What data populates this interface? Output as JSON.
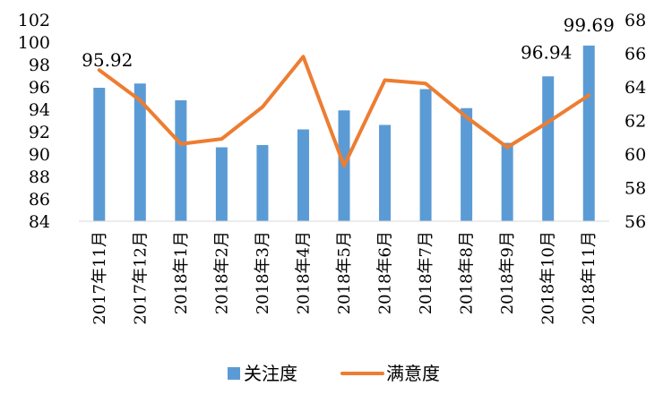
{
  "chart_data": {
    "type": "bar+line",
    "categories": [
      "2017年11月",
      "2017年12月",
      "2018年1月",
      "2018年2月",
      "2018年3月",
      "2018年4月",
      "2018年5月",
      "2018年6月",
      "2018年7月",
      "2018年8月",
      "2018年9月",
      "2018年10月",
      "2018年11月"
    ],
    "series": [
      {
        "name": "关注度",
        "type": "bar",
        "axis": "left",
        "color": "#5B9BD5",
        "values": [
          95.92,
          96.3,
          94.8,
          90.6,
          90.8,
          92.2,
          93.9,
          92.6,
          95.8,
          94.1,
          91.0,
          96.94,
          99.69
        ]
      },
      {
        "name": "满意度",
        "type": "line",
        "axis": "right",
        "color": "#ED7D31",
        "values": [
          65.0,
          63.2,
          60.6,
          60.9,
          62.8,
          65.8,
          59.3,
          64.4,
          64.2,
          62.2,
          60.4,
          61.9,
          63.5
        ]
      }
    ],
    "y_left": {
      "min": 84,
      "max": 102,
      "step": 2,
      "ticks": [
        "84",
        "86",
        "88",
        "90",
        "92",
        "94",
        "96",
        "98",
        "100",
        "102"
      ]
    },
    "y_right": {
      "min": 56,
      "max": 68,
      "step": 2,
      "ticks": [
        "56",
        "58",
        "60",
        "62",
        "64",
        "66",
        "68"
      ]
    },
    "data_labels": [
      {
        "index": 0,
        "text": "95.92"
      },
      {
        "index": 11,
        "text": "96.94"
      },
      {
        "index": 12,
        "text": "99.69"
      }
    ],
    "legend": {
      "position": "bottom",
      "items": [
        {
          "name": "关注度",
          "color": "#5B9BD5",
          "shape": "box"
        },
        {
          "name": "满意度",
          "color": "#ED7D31",
          "shape": "line"
        }
      ]
    },
    "grid": false
  }
}
